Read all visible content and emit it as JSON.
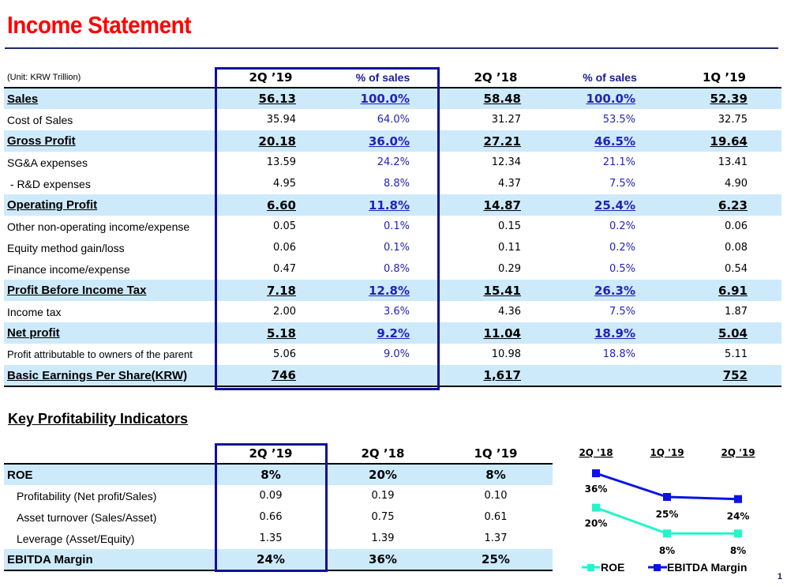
{
  "title": "Income Statement",
  "income": {
    "unit": "(Unit: KRW Trillion)",
    "headers": [
      "2Q ’19",
      "% of sales",
      "2Q ’18",
      "% of sales",
      "1Q ’19"
    ],
    "rows": [
      {
        "label": "Sales",
        "v": [
          "56.13",
          "100.0%",
          "58.48",
          "100.0%",
          "52.39"
        ],
        "bold": true,
        "hl": true
      },
      {
        "label": "Cost of Sales",
        "v": [
          "35.94",
          "64.0%",
          "31.27",
          "53.5%",
          "32.75"
        ]
      },
      {
        "label": "Gross Profit",
        "v": [
          "20.18",
          "36.0%",
          "27.21",
          "46.5%",
          "19.64"
        ],
        "bold": true,
        "hl": true
      },
      {
        "label": "SG&A expenses",
        "v": [
          "13.59",
          "24.2%",
          "12.34",
          "21.1%",
          "13.41"
        ]
      },
      {
        "label": " - R&D expenses",
        "v": [
          "4.95",
          "8.8%",
          "4.37",
          "7.5%",
          "4.90"
        ]
      },
      {
        "label": "Operating Profit",
        "v": [
          "6.60",
          "11.8%",
          "14.87",
          "25.4%",
          "6.23"
        ],
        "bold": true,
        "hl": true
      },
      {
        "label": "Other non-operating income/expense",
        "v": [
          "0.05",
          "0.1%",
          "0.15",
          "0.2%",
          "0.06"
        ]
      },
      {
        "label": "Equity method gain/loss",
        "v": [
          "0.06",
          "0.1%",
          "0.11",
          "0.2%",
          "0.08"
        ]
      },
      {
        "label": "Finance income/expense",
        "v": [
          "0.47",
          "0.8%",
          "0.29",
          "0.5%",
          "0.54"
        ]
      },
      {
        "label": "Profit Before Income Tax",
        "v": [
          "7.18",
          "12.8%",
          "15.41",
          "26.3%",
          "6.91"
        ],
        "bold": true,
        "hl": true
      },
      {
        "label": "Income tax",
        "v": [
          "2.00",
          "3.6%",
          "4.36",
          "7.5%",
          "1.87"
        ]
      },
      {
        "label": "Net profit",
        "v": [
          "5.18",
          "9.2%",
          "11.04",
          "18.9%",
          "5.04"
        ],
        "bold": true,
        "hl": true
      },
      {
        "label": "Profit attributable to owners of the parent",
        "v": [
          "5.06",
          "9.0%",
          "10.98",
          "18.8%",
          "5.11"
        ],
        "small": true
      },
      {
        "label": "Basic Earnings Per Share(KRW)",
        "v": [
          "746",
          "",
          "1,617",
          "",
          "752"
        ],
        "bold": true,
        "hl": true
      }
    ]
  },
  "kpi": {
    "title": "Key Profitability Indicators",
    "headers": [
      "2Q ’19",
      "2Q ’18",
      "1Q ’19"
    ],
    "rows": [
      {
        "label": "ROE",
        "v": [
          "8%",
          "20%",
          "8%"
        ],
        "bold": true,
        "hl": true
      },
      {
        "label": "Profitability (Net profit/Sales)",
        "v": [
          "0.09",
          "0.19",
          "0.10"
        ],
        "sub": true
      },
      {
        "label": "Asset turnover (Sales/Asset)",
        "v": [
          "0.66",
          "0.75",
          "0.61"
        ],
        "sub": true
      },
      {
        "label": "Leverage (Asset/Equity)",
        "v": [
          "1.35",
          "1.39",
          "1.37"
        ],
        "sub": true
      },
      {
        "label": "EBITDA Margin",
        "v": [
          "24%",
          "36%",
          "25%"
        ],
        "bold": true,
        "hl": true
      }
    ]
  },
  "chart_data": {
    "type": "line",
    "categories": [
      "2Q '18",
      "1Q '19",
      "2Q '19"
    ],
    "series": [
      {
        "name": "ROE",
        "values": [
          20,
          8,
          8
        ],
        "labels": [
          "20%",
          "8%",
          "8%"
        ],
        "color": "#22f5cc"
      },
      {
        "name": "EBITDA Margin",
        "values": [
          36,
          25,
          24
        ],
        "labels": [
          "36%",
          "25%",
          "24%"
        ],
        "color": "#0a14e6"
      }
    ],
    "legend": "bottom"
  },
  "page_number": "1"
}
